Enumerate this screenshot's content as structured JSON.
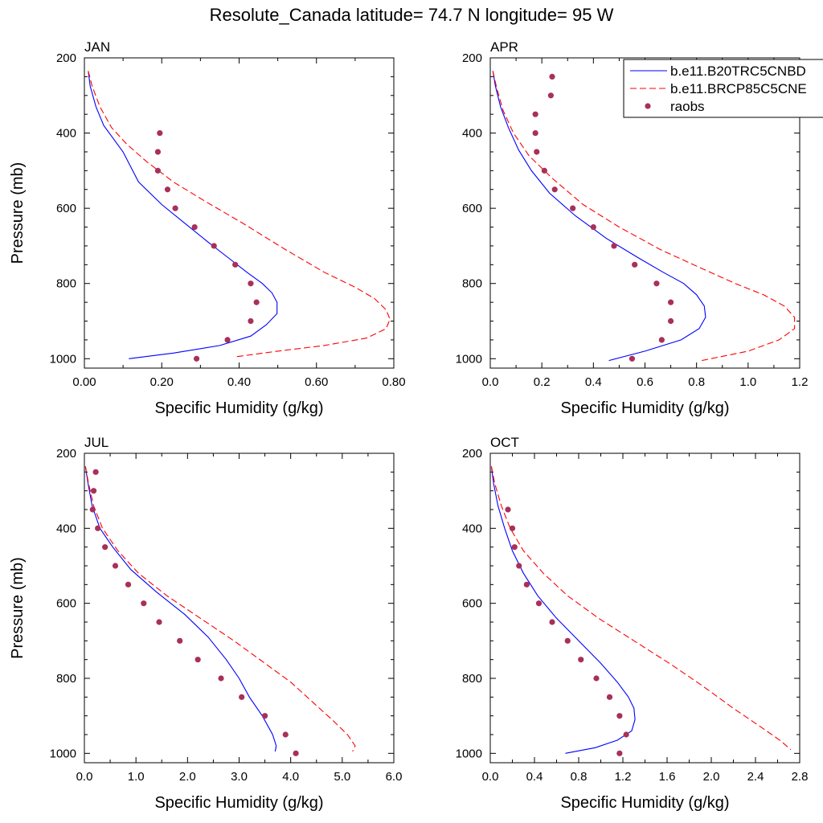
{
  "title": "Resolute_Canada  latitude= 74.7 N longitude= 95 W",
  "legend": {
    "placement": "top-right of APR panel",
    "entries": [
      {
        "label": "b.e11.B20TRC5CNBD",
        "style": "solid",
        "color": "#0000ff"
      },
      {
        "label": "b.e11.BRCP85C5CNE",
        "style": "dashed",
        "color": "#ff0000"
      },
      {
        "label": "raobs",
        "style": "marker",
        "color": "#a8305a"
      }
    ]
  },
  "colors": {
    "model_solid": "#0000ff",
    "model_dashed": "#ff0000",
    "obs": "#a8305a"
  },
  "chart_data": [
    {
      "type": "line",
      "panel": "JAN",
      "xlabel": "Specific Humidity (g/kg)",
      "ylabel": "Pressure (mb)",
      "xlim": [
        0,
        0.8
      ],
      "ylim": [
        1025,
        200
      ],
      "xticks": [
        0,
        0.2,
        0.4,
        0.6,
        0.8
      ],
      "xtick_labels": [
        "0.00",
        "0.20",
        "0.40",
        "0.60",
        "0.80"
      ],
      "yticks": [
        200,
        400,
        600,
        800,
        1000
      ],
      "ytick_labels": [
        "200",
        "400",
        "600",
        "800",
        "1000"
      ],
      "series": [
        {
          "name": "b.e11.B20TRC5CNBD",
          "style": "solid",
          "x": [
            0.01,
            0.015,
            0.03,
            0.05,
            0.075,
            0.1,
            0.14,
            0.2,
            0.26,
            0.32,
            0.37,
            0.42,
            0.46,
            0.485,
            0.498,
            0.498,
            0.47,
            0.43,
            0.35,
            0.23,
            0.115
          ],
          "y": [
            235,
            275,
            330,
            380,
            415,
            450,
            530,
            590,
            640,
            690,
            730,
            770,
            800,
            825,
            850,
            880,
            910,
            940,
            965,
            985,
            1000
          ]
        },
        {
          "name": "b.e11.BRCP85C5CNE",
          "style": "dashed",
          "x": [
            0.01,
            0.02,
            0.04,
            0.07,
            0.11,
            0.16,
            0.23,
            0.31,
            0.41,
            0.52,
            0.62,
            0.7,
            0.75,
            0.78,
            0.79,
            0.78,
            0.73,
            0.62,
            0.5,
            0.39
          ],
          "y": [
            235,
            275,
            330,
            385,
            430,
            475,
            530,
            580,
            640,
            710,
            770,
            810,
            840,
            870,
            895,
            920,
            945,
            965,
            980,
            995
          ]
        },
        {
          "name": "raobs",
          "style": "marker",
          "x": [
            0.195,
            0.19,
            0.19,
            0.215,
            0.235,
            0.285,
            0.335,
            0.39,
            0.43,
            0.445,
            0.43,
            0.37,
            0.29
          ],
          "y": [
            400,
            450,
            500,
            550,
            600,
            650,
            700,
            750,
            800,
            850,
            900,
            950,
            1000
          ]
        }
      ]
    },
    {
      "type": "line",
      "panel": "APR",
      "xlabel": "Specific Humidity (g/kg)",
      "ylabel": "",
      "xlim": [
        0,
        1.2
      ],
      "ylim": [
        1025,
        200
      ],
      "xticks": [
        0,
        0.2,
        0.4,
        0.6,
        0.8,
        1.0,
        1.2
      ],
      "xtick_labels": [
        "0.0",
        "0.2",
        "0.4",
        "0.6",
        "0.8",
        "1.0",
        "1.2"
      ],
      "yticks": [
        200,
        400,
        600,
        800,
        1000
      ],
      "ytick_labels": [
        "200",
        "400",
        "600",
        "800",
        "1000"
      ],
      "series": [
        {
          "name": "b.e11.B20TRC5CNBD",
          "style": "solid",
          "x": [
            0.01,
            0.02,
            0.04,
            0.07,
            0.11,
            0.16,
            0.23,
            0.33,
            0.45,
            0.57,
            0.67,
            0.75,
            0.8,
            0.83,
            0.835,
            0.81,
            0.74,
            0.6,
            0.46
          ],
          "y": [
            235,
            275,
            330,
            385,
            445,
            500,
            560,
            620,
            680,
            730,
            770,
            800,
            830,
            860,
            890,
            920,
            950,
            980,
            1005
          ]
        },
        {
          "name": "b.e11.BRCP85C5CNE",
          "style": "dashed",
          "x": [
            0.01,
            0.025,
            0.05,
            0.09,
            0.15,
            0.24,
            0.36,
            0.5,
            0.66,
            0.82,
            0.95,
            1.06,
            1.14,
            1.18,
            1.18,
            1.12,
            1.0,
            0.82
          ],
          "y": [
            235,
            280,
            340,
            400,
            460,
            520,
            590,
            650,
            710,
            760,
            800,
            830,
            860,
            890,
            920,
            950,
            980,
            1005
          ]
        },
        {
          "name": "raobs",
          "style": "marker",
          "x": [
            0.24,
            0.235,
            0.175,
            0.175,
            0.18,
            0.21,
            0.25,
            0.32,
            0.4,
            0.48,
            0.56,
            0.645,
            0.7,
            0.7,
            0.665,
            0.55
          ],
          "y": [
            250,
            300,
            350,
            400,
            450,
            500,
            550,
            600,
            650,
            700,
            750,
            800,
            850,
            900,
            950,
            1000
          ]
        }
      ]
    },
    {
      "type": "line",
      "panel": "JUL",
      "xlabel": "Specific Humidity (g/kg)",
      "ylabel": "Pressure (mb)",
      "xlim": [
        0,
        6
      ],
      "ylim": [
        1025,
        200
      ],
      "xticks": [
        0,
        1,
        2,
        3,
        4,
        5,
        6
      ],
      "xtick_labels": [
        "0.0",
        "1.0",
        "2.0",
        "3.0",
        "4.0",
        "5.0",
        "6.0"
      ],
      "yticks": [
        200,
        400,
        600,
        800,
        1000
      ],
      "ytick_labels": [
        "200",
        "400",
        "600",
        "800",
        "1000"
      ],
      "series": [
        {
          "name": "b.e11.B20TRC5CNBD",
          "style": "solid",
          "x": [
            0.02,
            0.07,
            0.15,
            0.3,
            0.55,
            0.9,
            1.4,
            1.95,
            2.4,
            2.75,
            3.0,
            3.2,
            3.45,
            3.65,
            3.72,
            3.7
          ],
          "y": [
            235,
            280,
            340,
            400,
            450,
            510,
            570,
            630,
            690,
            750,
            800,
            850,
            900,
            950,
            980,
            995
          ]
        },
        {
          "name": "b.e11.BRCP85C5CNE",
          "style": "dashed",
          "x": [
            0.02,
            0.08,
            0.18,
            0.35,
            0.65,
            1.05,
            1.6,
            2.25,
            2.9,
            3.5,
            4.0,
            4.4,
            4.8,
            5.1,
            5.25,
            5.2
          ],
          "y": [
            235,
            280,
            340,
            400,
            460,
            520,
            580,
            640,
            700,
            760,
            810,
            860,
            910,
            950,
            980,
            995
          ]
        },
        {
          "name": "raobs",
          "style": "marker",
          "x": [
            0.22,
            0.18,
            0.16,
            0.26,
            0.4,
            0.6,
            0.85,
            1.15,
            1.45,
            1.85,
            2.2,
            2.65,
            3.05,
            3.5,
            3.9,
            4.1
          ],
          "y": [
            250,
            300,
            350,
            400,
            450,
            500,
            550,
            600,
            650,
            700,
            750,
            800,
            850,
            900,
            950,
            1000
          ]
        }
      ]
    },
    {
      "type": "line",
      "panel": "OCT",
      "xlabel": "Specific Humidity (g/kg)",
      "ylabel": "",
      "xlim": [
        0,
        2.8
      ],
      "ylim": [
        1025,
        200
      ],
      "xticks": [
        0,
        0.4,
        0.8,
        1.2,
        1.6,
        2.0,
        2.4,
        2.8
      ],
      "xtick_labels": [
        "0.0",
        "0.4",
        "0.8",
        "1.2",
        "1.6",
        "2.0",
        "2.4",
        "2.8"
      ],
      "yticks": [
        200,
        400,
        600,
        800,
        1000
      ],
      "ytick_labels": [
        "200",
        "400",
        "600",
        "800",
        "1000"
      ],
      "series": [
        {
          "name": "b.e11.B20TRC5CNBD",
          "style": "solid",
          "x": [
            0.01,
            0.03,
            0.07,
            0.13,
            0.2,
            0.3,
            0.43,
            0.6,
            0.8,
            1.0,
            1.15,
            1.25,
            1.3,
            1.31,
            1.28,
            1.15,
            0.95,
            0.68
          ],
          "y": [
            235,
            280,
            340,
            400,
            460,
            520,
            580,
            640,
            700,
            760,
            810,
            850,
            880,
            910,
            940,
            965,
            985,
            1000
          ]
        },
        {
          "name": "b.e11.BRCP85C5CNE",
          "style": "dashed",
          "x": [
            0.01,
            0.04,
            0.1,
            0.18,
            0.3,
            0.48,
            0.7,
            0.98,
            1.3,
            1.62,
            1.92,
            2.2,
            2.45,
            2.62,
            2.72
          ],
          "y": [
            235,
            280,
            340,
            400,
            460,
            520,
            580,
            640,
            700,
            760,
            820,
            880,
            930,
            965,
            990
          ]
        },
        {
          "name": "raobs",
          "style": "marker",
          "x": [
            0.16,
            0.2,
            0.22,
            0.26,
            0.33,
            0.44,
            0.56,
            0.7,
            0.82,
            0.96,
            1.08,
            1.17,
            1.23,
            1.17
          ],
          "y": [
            350,
            400,
            450,
            500,
            550,
            600,
            650,
            700,
            750,
            800,
            850,
            900,
            950,
            1000
          ]
        }
      ]
    }
  ]
}
